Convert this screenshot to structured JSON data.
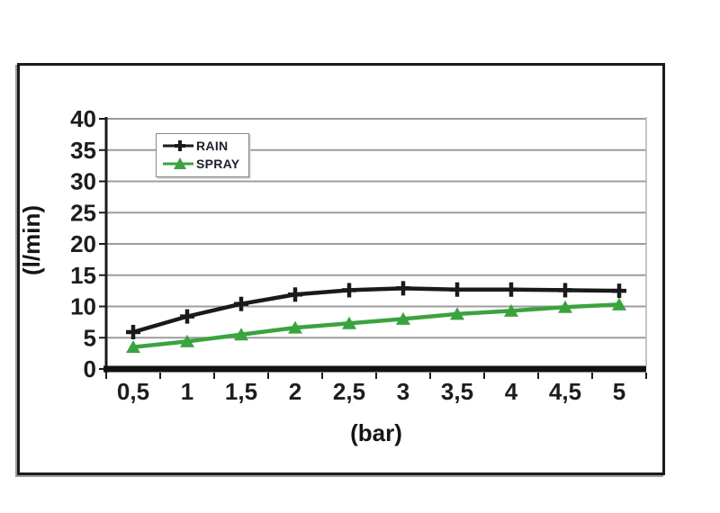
{
  "figure": {
    "background": "#ffffff",
    "frame_border_color": "#1b1b1b"
  },
  "chart_data": {
    "type": "line",
    "title": "",
    "xlabel": "(bar)",
    "ylabel": "(l/min)",
    "categories": [
      "0,5",
      "1",
      "1,5",
      "2",
      "2,5",
      "3",
      "3,5",
      "4",
      "4,5",
      "5"
    ],
    "x_values": [
      0.5,
      1,
      1.5,
      2,
      2.5,
      3,
      3.5,
      4,
      4.5,
      5
    ],
    "series": [
      {
        "name": "RAIN",
        "color": "#1a1a1a",
        "marker": "plus",
        "values": [
          5.9,
          8.4,
          10.4,
          11.9,
          12.6,
          12.9,
          12.7,
          12.7,
          12.6,
          12.5
        ]
      },
      {
        "name": "SPRAY",
        "color": "#3aa33e",
        "marker": "triangle",
        "values": [
          3.5,
          4.4,
          5.5,
          6.6,
          7.3,
          8.0,
          8.8,
          9.3,
          9.9,
          10.3
        ]
      }
    ],
    "ylim": [
      0,
      40
    ],
    "yticks": [
      0,
      5,
      10,
      15,
      20,
      25,
      30,
      35,
      40
    ],
    "grid": "horizontal",
    "gridline_color": "#9c9c9c",
    "axis_color": "#1b1b1b",
    "plot_right_border_color": "#b2b2b2",
    "legend_position": "top-left-inside"
  }
}
